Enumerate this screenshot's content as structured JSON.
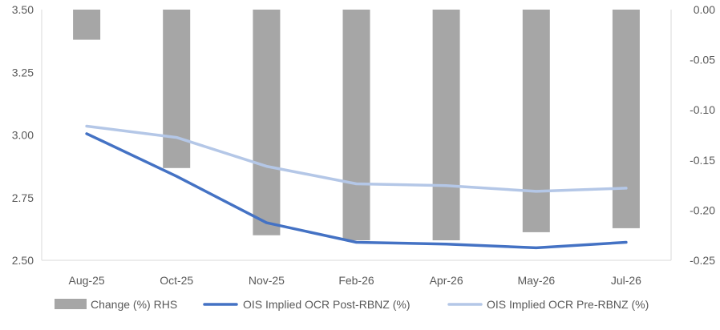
{
  "chart_data": {
    "type": "bar",
    "categories": [
      "Aug-25",
      "Oct-25",
      "Nov-25",
      "Feb-26",
      "Apr-26",
      "May-26",
      "Jul-26"
    ],
    "series": [
      {
        "name": "Change (%) RHS",
        "kind": "bar",
        "axis": "right",
        "color": "#a6a6a6",
        "values": [
          -0.03,
          -0.158,
          -0.225,
          -0.23,
          -0.23,
          -0.222,
          -0.218
        ]
      },
      {
        "name": "OIS Implied OCR Post-RBNZ (%)",
        "kind": "line",
        "axis": "left",
        "color": "#4472c4",
        "values": [
          3.005,
          2.835,
          2.65,
          2.572,
          2.565,
          2.55,
          2.572
        ]
      },
      {
        "name": "OIS Implied OCR Pre-RBNZ (%)",
        "kind": "line",
        "axis": "left",
        "color": "#b4c7e7",
        "values": [
          3.035,
          2.99,
          2.875,
          2.805,
          2.798,
          2.775,
          2.788
        ]
      }
    ],
    "left_axis": {
      "min": 2.5,
      "max": 3.5,
      "ticks": [
        "2.50",
        "2.75",
        "3.00",
        "3.25",
        "3.50"
      ]
    },
    "right_axis": {
      "min": -0.25,
      "max": 0.0,
      "ticks": [
        "-0.25",
        "-0.20",
        "-0.15",
        "-0.10",
        "-0.05",
        "0.00"
      ]
    },
    "title": "",
    "xlabel": "",
    "ylabel": "",
    "grid": false,
    "legend_position": "bottom"
  }
}
